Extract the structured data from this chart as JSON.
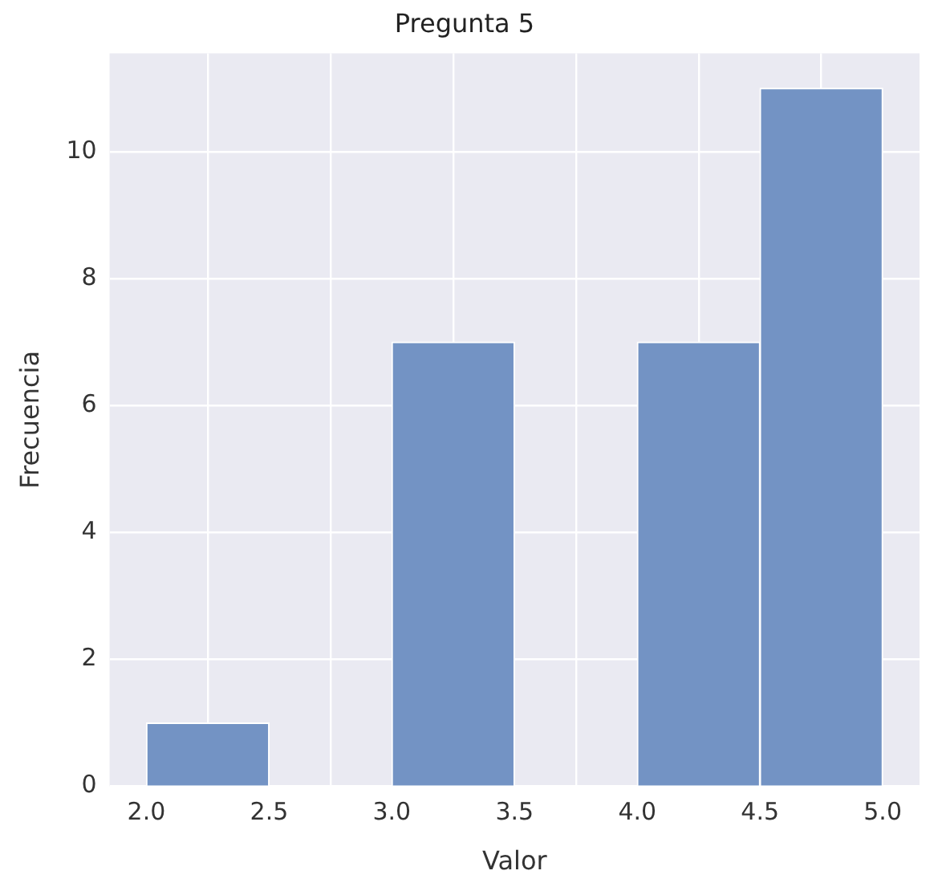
{
  "chart_data": {
    "type": "histogram",
    "title": "Pregunta 5",
    "xlabel": "Valor",
    "ylabel": "Frecuencia",
    "bins": [
      2.0,
      2.5,
      3.0,
      3.5,
      4.0,
      4.5,
      5.0
    ],
    "values": [
      1,
      0,
      7,
      0,
      7,
      11
    ],
    "color": "#7393c4",
    "xlim": [
      1.85,
      5.15
    ],
    "xticks": [
      {
        "value": 2.0,
        "label": "2.0"
      },
      {
        "value": 2.5,
        "label": "2.5"
      },
      {
        "value": 3.0,
        "label": "3.0"
      },
      {
        "value": 3.5,
        "label": "3.5"
      },
      {
        "value": 4.0,
        "label": "4.0"
      },
      {
        "value": 4.5,
        "label": "4.5"
      },
      {
        "value": 5.0,
        "label": "5.0"
      }
    ],
    "ylim": [
      0,
      11.55
    ],
    "yticks": [
      0,
      2,
      4,
      6,
      8,
      10
    ],
    "grid": true
  }
}
